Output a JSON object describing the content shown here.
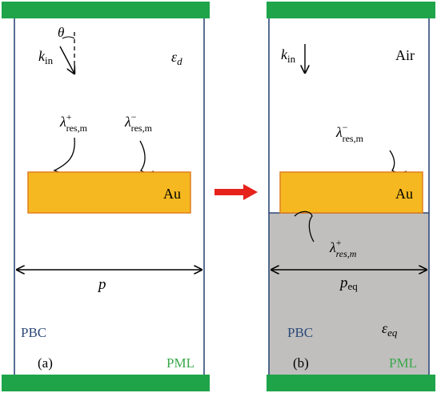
{
  "panel_a": {
    "theta": "θ",
    "k": "k",
    "k_sub": "in",
    "epsilon": "ε",
    "epsilon_sub": "d",
    "lambda_plus": "λ",
    "lambda_plus_sup": "+",
    "lambda_plus_sub": "res,m",
    "lambda_minus": "λ",
    "lambda_minus_sup": "−",
    "lambda_minus_sub": "res,m",
    "metal": "Au",
    "period": "p",
    "boundary": "PBC",
    "layer": "PML",
    "caption": "(a)"
  },
  "panel_b": {
    "k": "k",
    "k_sub": "in",
    "medium": "Air",
    "lambda_minus": "λ",
    "lambda_minus_sup": "−",
    "lambda_minus_sub": "res,m",
    "metal": "Au",
    "lambda_plus": "λ",
    "lambda_plus_sup": "+",
    "lambda_plus_sub": "res,m",
    "period": "p",
    "period_sub": "eq",
    "boundary": "PBC",
    "epsilon": "ε",
    "epsilon_sub": "eq",
    "layer": "PML",
    "caption": "(b)"
  },
  "colors": {
    "pml_green": "#1fa44a",
    "gold_fill": "#f5b820",
    "gold_stroke": "#e07f20",
    "substrate_gray": "#c0bfbe",
    "boundary_blue": "#2e4a78",
    "pbc_text": "#2e4a78",
    "pml_text": "#3aa84a",
    "arrow_red": "#e5221c"
  }
}
